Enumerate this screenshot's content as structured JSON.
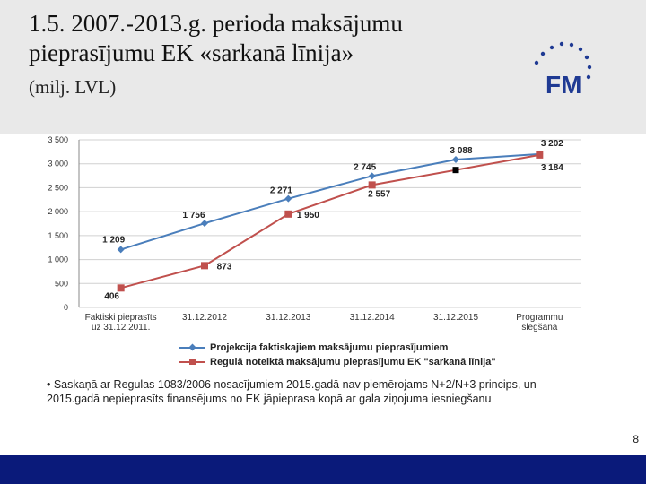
{
  "slide": {
    "title_line1": "1.5. 2007.-2013.g. perioda maksājumu",
    "title_line2": "pieprasījumu EK «sarkanā līnija»",
    "subtitle": "(milj. LVL)",
    "logo_letters": "FM",
    "note": "• Saskaņā ar Regulas 1083/2006 nosacījumiem 2015.gadā nav piemērojams N+2/N+3 princips, un 2015.gadā nepieprasīts finansējums no EK jāpieprasa kopā ar gala ziņojuma iesniegšanu",
    "page_number": "8",
    "colors": {
      "header_bg": "#e9e9e9",
      "footer_bg": "#0a1a7a",
      "logo_blue": "#1f3a93"
    }
  },
  "chart_data": {
    "type": "line",
    "categories": [
      "Faktiski pieprasīts uz 31.12.2011.",
      "31.12.2012",
      "31.12.2013",
      "31.12.2014",
      "31.12.2015",
      "Programmu slēgšana"
    ],
    "category_lines": [
      [
        "Faktiski pieprasīts",
        "uz 31.12.2011."
      ],
      [
        "31.12.2012"
      ],
      [
        "31.12.2013"
      ],
      [
        "31.12.2014"
      ],
      [
        "31.12.2015"
      ],
      [
        "Programmu",
        "slēgšana"
      ]
    ],
    "y_ticks": [
      "0",
      "500",
      "1 000",
      "1 500",
      "2 000",
      "2 500",
      "3 000",
      "3 500"
    ],
    "ylim": [
      0,
      3500
    ],
    "grid": "horizontal",
    "series": [
      {
        "name": "Projekcija faktiskajiem maksājumu pieprasījumiem",
        "color": "#4a7ebb",
        "marker": "diamond",
        "values": [
          1209,
          1756,
          2271,
          2745,
          3088,
          3202
        ],
        "labels": [
          "1 209",
          "1 756",
          "2 271",
          "2 745",
          "3 088",
          "3 202"
        ]
      },
      {
        "name": "Regulā noteiktā maksājumu pieprasījumu EK \"sarkanā līnija\"",
        "color": "#c0504d",
        "marker": "square",
        "values": [
          406,
          873,
          1950,
          2557,
          null,
          3184
        ],
        "labels": [
          "406",
          "873",
          "1 950",
          "2 557",
          null,
          "3 184"
        ]
      }
    ],
    "extra_points": [
      {
        "category": "31.12.2015",
        "value": 2870,
        "color": "#000000",
        "marker": "square"
      }
    ],
    "legend_position": "bottom"
  }
}
